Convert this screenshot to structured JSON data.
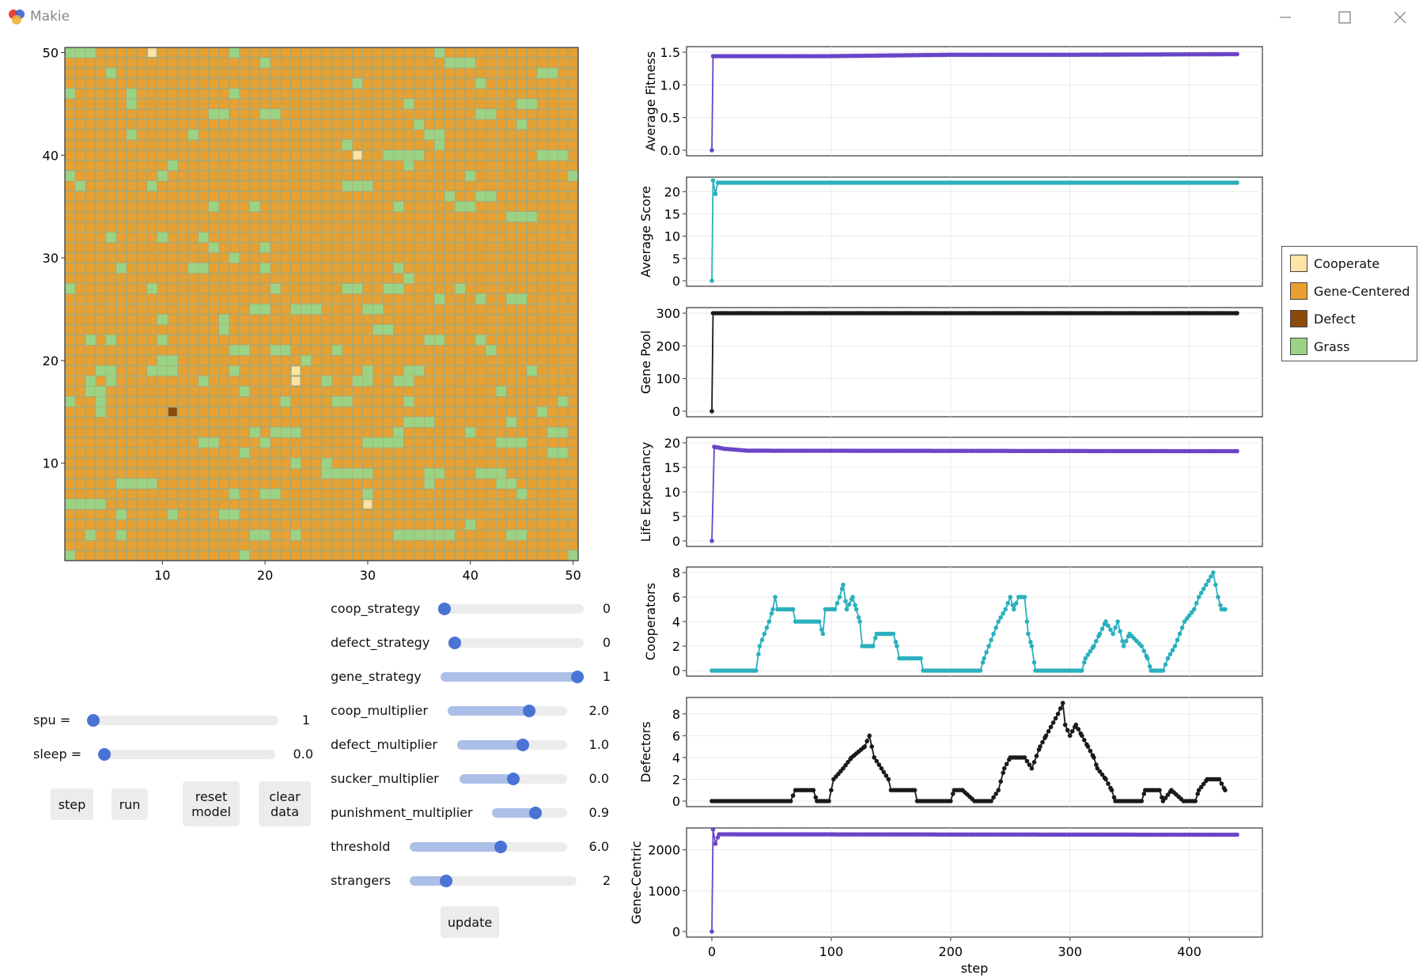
{
  "window": {
    "title": "Makie"
  },
  "heatmap": {
    "x_ticks": [
      "10",
      "20",
      "30",
      "40",
      "50"
    ],
    "y_ticks": [
      "10",
      "20",
      "30",
      "40",
      "50"
    ],
    "grid_size": 50,
    "colors": {
      "cooperate": "#fde4a4",
      "gene": "#e8a030",
      "defect": "#8b4a0b",
      "grass": "#9ad386",
      "bg": "#b0a86c"
    },
    "special_cells": [
      {
        "x": 9,
        "y": 50,
        "state": "cooperate"
      },
      {
        "x": 29,
        "y": 40,
        "state": "cooperate"
      },
      {
        "x": 23,
        "y": 19,
        "state": "cooperate"
      },
      {
        "x": 23,
        "y": 18,
        "state": "cooperate"
      },
      {
        "x": 30,
        "y": 6,
        "state": "cooperate"
      },
      {
        "x": 11,
        "y": 15,
        "state": "defect"
      }
    ]
  },
  "legend": {
    "items": [
      {
        "label": "Cooperate",
        "color": "#fde4a4"
      },
      {
        "label": "Gene-Centered",
        "color": "#e8a030"
      },
      {
        "label": "Defect",
        "color": "#8b4a0b"
      },
      {
        "label": "Grass",
        "color": "#9ad386"
      }
    ]
  },
  "controls": {
    "spu": {
      "label": "spu =",
      "value": "1",
      "fraction": 0.0
    },
    "sleep": {
      "label": "sleep =",
      "value": "0.0",
      "fraction": 0.0
    },
    "buttons": {
      "step": "step",
      "run": "run",
      "reset": "reset\nmodel",
      "clear": "clear\ndata",
      "update": "update"
    }
  },
  "params": [
    {
      "label": "coop_strategy",
      "value": "0",
      "fraction": 0.0
    },
    {
      "label": "defect_strategy",
      "value": "0",
      "fraction": 0.0
    },
    {
      "label": "gene_strategy",
      "value": "1",
      "fraction": 1.0
    },
    {
      "label": "coop_multiplier",
      "value": "2.0",
      "fraction": 0.68
    },
    {
      "label": "defect_multiplier",
      "value": "1.0",
      "fraction": 0.6
    },
    {
      "label": "sucker_multiplier",
      "value": "0.0",
      "fraction": 0.5
    },
    {
      "label": "punishment_multiplier",
      "value": "0.9",
      "fraction": 0.6
    },
    {
      "label": "threshold",
      "value": "6.0",
      "fraction": 0.59
    },
    {
      "label": "strangers",
      "value": "2",
      "fraction": 0.22
    }
  ],
  "chart_data": [
    {
      "type": "line",
      "ylabel": "Average Fitness",
      "ylim": [
        0,
        1.5
      ],
      "yticks": [
        "0.0",
        "0.5",
        "1.0",
        "1.5"
      ],
      "xlim": [
        0,
        440
      ],
      "color": "#6a45c8",
      "series": [
        {
          "values": [
            [
              0,
              0
            ],
            [
              1,
              1.44
            ],
            [
              20,
              1.44
            ],
            [
              100,
              1.44
            ],
            [
              200,
              1.46
            ],
            [
              300,
              1.46
            ],
            [
              440,
              1.47
            ]
          ]
        }
      ]
    },
    {
      "type": "line",
      "ylabel": "Average Score",
      "ylim": [
        0,
        22
      ],
      "yticks": [
        "0",
        "5",
        "10",
        "15",
        "20"
      ],
      "xlim": [
        0,
        440
      ],
      "color": "#2ab0be",
      "series": [
        {
          "values": [
            [
              0,
              0
            ],
            [
              1,
              22.5
            ],
            [
              3,
              19.5
            ],
            [
              5,
              22
            ],
            [
              440,
              22
            ]
          ]
        }
      ]
    },
    {
      "type": "line",
      "ylabel": "Gene Pool",
      "ylim": [
        0,
        300
      ],
      "yticks": [
        "0",
        "100",
        "200",
        "300"
      ],
      "xlim": [
        0,
        440
      ],
      "color": "#1a1a1a",
      "series": [
        {
          "values": [
            [
              0,
              0
            ],
            [
              1,
              300
            ],
            [
              440,
              300
            ]
          ]
        }
      ]
    },
    {
      "type": "line",
      "ylabel": "Life Expectancy",
      "ylim": [
        0,
        20
      ],
      "yticks": [
        "0",
        "5",
        "10",
        "15",
        "20"
      ],
      "xlim": [
        0,
        440
      ],
      "color": "#6a45c8",
      "series": [
        {
          "values": [
            [
              0,
              0
            ],
            [
              2,
              19.2
            ],
            [
              10,
              18.8
            ],
            [
              30,
              18.4
            ],
            [
              440,
              18.3
            ]
          ]
        }
      ]
    },
    {
      "type": "line",
      "ylabel": "Cooperators",
      "ylim": [
        0,
        8
      ],
      "yticks": [
        "0",
        "2",
        "4",
        "6",
        "8"
      ],
      "xlim": [
        0,
        440
      ],
      "color": "#2ab0be",
      "series": [
        {
          "values": [
            [
              0,
              0
            ],
            [
              37,
              0
            ],
            [
              40,
              2
            ],
            [
              44,
              3
            ],
            [
              48,
              4
            ],
            [
              51,
              5
            ],
            [
              53,
              6
            ],
            [
              55,
              5
            ],
            [
              68,
              5
            ],
            [
              70,
              4
            ],
            [
              90,
              4
            ],
            [
              93,
              3
            ],
            [
              95,
              5
            ],
            [
              103,
              5
            ],
            [
              107,
              6
            ],
            [
              110,
              7
            ],
            [
              113,
              5
            ],
            [
              118,
              6
            ],
            [
              121,
              5
            ],
            [
              124,
              4
            ],
            [
              126,
              2
            ],
            [
              135,
              2
            ],
            [
              138,
              3
            ],
            [
              152,
              3
            ],
            [
              155,
              2
            ],
            [
              157,
              1
            ],
            [
              175,
              1
            ],
            [
              177,
              0
            ],
            [
              225,
              0
            ],
            [
              228,
              1
            ],
            [
              232,
              2
            ],
            [
              236,
              3
            ],
            [
              240,
              4
            ],
            [
              246,
              5
            ],
            [
              250,
              6
            ],
            [
              253,
              5
            ],
            [
              257,
              6
            ],
            [
              262,
              6
            ],
            [
              265,
              3
            ],
            [
              268,
              2
            ],
            [
              271,
              0
            ],
            [
              310,
              0
            ],
            [
              313,
              1
            ],
            [
              320,
              2
            ],
            [
              325,
              3
            ],
            [
              330,
              4
            ],
            [
              336,
              3
            ],
            [
              340,
              4
            ],
            [
              345,
              2
            ],
            [
              350,
              3
            ],
            [
              360,
              2
            ],
            [
              365,
              1
            ],
            [
              368,
              0
            ],
            [
              378,
              0
            ],
            [
              382,
              1
            ],
            [
              388,
              2
            ],
            [
              396,
              4
            ],
            [
              404,
              5
            ],
            [
              408,
              6
            ],
            [
              414,
              7
            ],
            [
              420,
              8
            ],
            [
              424,
              6
            ],
            [
              427,
              5
            ],
            [
              430,
              5
            ]
          ]
        }
      ]
    },
    {
      "type": "line",
      "ylabel": "Defectors",
      "ylim": [
        0,
        9
      ],
      "yticks": [
        "0",
        "2",
        "4",
        "6",
        "8"
      ],
      "xlim": [
        0,
        440
      ],
      "color": "#1a1a1a",
      "series": [
        {
          "values": [
            [
              0,
              0
            ],
            [
              66,
              0
            ],
            [
              70,
              1
            ],
            [
              85,
              1
            ],
            [
              88,
              0
            ],
            [
              98,
              0
            ],
            [
              102,
              2
            ],
            [
              110,
              3
            ],
            [
              117,
              4
            ],
            [
              128,
              5
            ],
            [
              132,
              6
            ],
            [
              136,
              4
            ],
            [
              142,
              3
            ],
            [
              148,
              2
            ],
            [
              150,
              1
            ],
            [
              170,
              1
            ],
            [
              172,
              0
            ],
            [
              200,
              0
            ],
            [
              203,
              1
            ],
            [
              210,
              1
            ],
            [
              220,
              0
            ],
            [
              234,
              0
            ],
            [
              240,
              1
            ],
            [
              245,
              3
            ],
            [
              250,
              4
            ],
            [
              262,
              4
            ],
            [
              268,
              3
            ],
            [
              275,
              5
            ],
            [
              280,
              6
            ],
            [
              290,
              8
            ],
            [
              294,
              9
            ],
            [
              296,
              7
            ],
            [
              300,
              6
            ],
            [
              305,
              7
            ],
            [
              310,
              6
            ],
            [
              315,
              5
            ],
            [
              320,
              4
            ],
            [
              323,
              3
            ],
            [
              330,
              2
            ],
            [
              335,
              1
            ],
            [
              338,
              0
            ],
            [
              360,
              0
            ],
            [
              363,
              1
            ],
            [
              375,
              1
            ],
            [
              378,
              0
            ],
            [
              385,
              1
            ],
            [
              395,
              0
            ],
            [
              405,
              0
            ],
            [
              408,
              1
            ],
            [
              415,
              2
            ],
            [
              425,
              2
            ],
            [
              430,
              1
            ]
          ]
        }
      ]
    },
    {
      "type": "line",
      "ylabel": "Gene-Centric",
      "ylim": [
        0,
        2400
      ],
      "yticks": [
        "0",
        "1000",
        "2000"
      ],
      "xlim": [
        0,
        440
      ],
      "xlabel": "step",
      "xticks": [
        "0",
        "100",
        "200",
        "300",
        "400"
      ],
      "color": "#6a45c8",
      "series": [
        {
          "values": [
            [
              0,
              0
            ],
            [
              1,
              2500
            ],
            [
              3,
              2150
            ],
            [
              6,
              2380
            ],
            [
              440,
              2370
            ]
          ]
        }
      ]
    }
  ]
}
